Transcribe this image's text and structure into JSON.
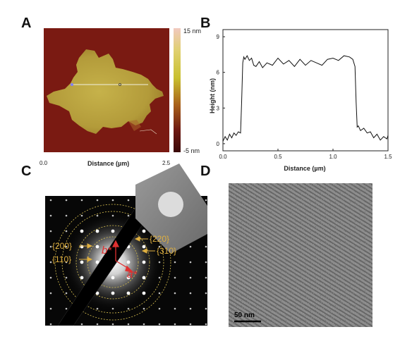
{
  "panels": {
    "A": {
      "letter": "A",
      "colorbar_max": "15 nm",
      "colorbar_min": "-5 nm",
      "x_ticks": [
        "0.0",
        "2.5"
      ],
      "xlabel": "Distance (µm)"
    },
    "B": {
      "letter": "B",
      "xlabel": "Distance (µm)",
      "ylabel": "Height (nm)"
    },
    "C": {
      "letter": "C",
      "planes": [
        "{200}",
        "{110}",
        "{220}",
        "{310}"
      ],
      "vectors": [
        "b*",
        "a*"
      ]
    },
    "D": {
      "letter": "D",
      "scalebar": "50 nm"
    }
  },
  "chart_data": {
    "type": "line",
    "title": "",
    "xlabel": "Distance (µm)",
    "ylabel": "Height (nm)",
    "xlim": [
      0.0,
      1.5
    ],
    "ylim": [
      -0.6,
      9.6
    ],
    "x_ticks": [
      "0.0",
      "0.5",
      "1.0",
      "1.5"
    ],
    "y_ticks": [
      "0",
      "3",
      "6",
      "9"
    ],
    "grid": false,
    "series": [
      {
        "x": [
          0.0,
          0.02,
          0.04,
          0.06,
          0.08,
          0.1,
          0.12,
          0.14,
          0.16,
          0.17,
          0.18,
          0.19,
          0.2,
          0.22,
          0.24,
          0.26,
          0.28,
          0.3,
          0.33,
          0.36,
          0.4,
          0.45,
          0.5,
          0.55,
          0.6,
          0.65,
          0.7,
          0.75,
          0.8,
          0.85,
          0.9,
          0.95,
          1.0,
          1.05,
          1.1,
          1.15,
          1.18,
          1.2,
          1.21,
          1.22,
          1.23,
          1.25,
          1.28,
          1.31,
          1.34,
          1.37,
          1.4,
          1.43,
          1.46,
          1.49,
          1.5
        ],
        "y": [
          0.2,
          0.6,
          0.3,
          0.8,
          0.5,
          0.9,
          0.7,
          1.0,
          0.9,
          3.5,
          6.8,
          7.3,
          7.1,
          7.4,
          7.0,
          7.2,
          6.6,
          6.5,
          6.9,
          6.4,
          6.8,
          6.6,
          7.2,
          6.7,
          7.0,
          6.5,
          7.1,
          6.6,
          7.0,
          6.8,
          6.6,
          7.1,
          7.2,
          7.0,
          7.4,
          7.3,
          7.1,
          6.5,
          3.5,
          1.4,
          1.5,
          1.1,
          1.3,
          0.9,
          1.0,
          0.5,
          0.8,
          0.3,
          0.6,
          0.4,
          0.7
        ]
      }
    ]
  }
}
